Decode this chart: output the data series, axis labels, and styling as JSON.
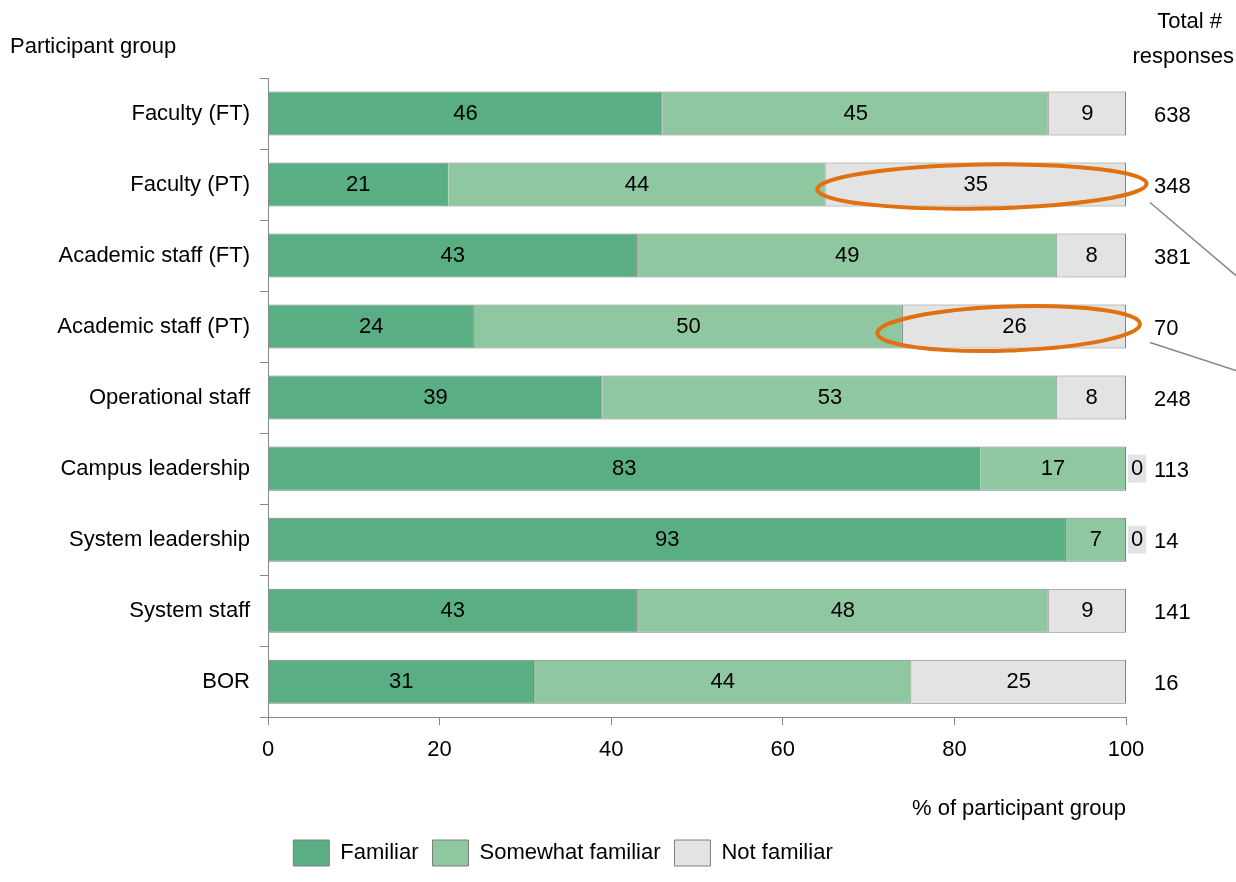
{
  "chart_data": {
    "type": "bar",
    "orientation": "horizontal",
    "stacked": true,
    "ylabel": "Participant group",
    "xlabel": "% of participant group",
    "categories": [
      "Faculty (FT)",
      "Faculty (PT)",
      "Academic staff (FT)",
      "Academic staff (PT)",
      "Operational staff",
      "Campus leadership",
      "System leadership",
      "System staff",
      "BOR"
    ],
    "series": [
      {
        "name": "Familiar",
        "color": "#5aae84",
        "values": [
          46,
          21,
          43,
          24,
          39,
          83,
          93,
          43,
          31
        ]
      },
      {
        "name": "Somewhat familiar",
        "color": "#8fc8a0",
        "values": [
          45,
          44,
          49,
          50,
          53,
          17,
          7,
          48,
          44
        ]
      },
      {
        "name": "Not familiar",
        "color": "#e3e3e3",
        "values": [
          9,
          35,
          8,
          26,
          8,
          0,
          0,
          9,
          25
        ]
      }
    ],
    "xlim": [
      0,
      100
    ],
    "xticks": [
      0,
      20,
      40,
      60,
      80,
      100
    ],
    "grid": false,
    "legend": "bottom",
    "data_labels": true,
    "annotations": [
      "Total # responses",
      "638",
      "348",
      "381",
      "70",
      "248",
      "113",
      "14",
      "141",
      "16"
    ]
  }
}
